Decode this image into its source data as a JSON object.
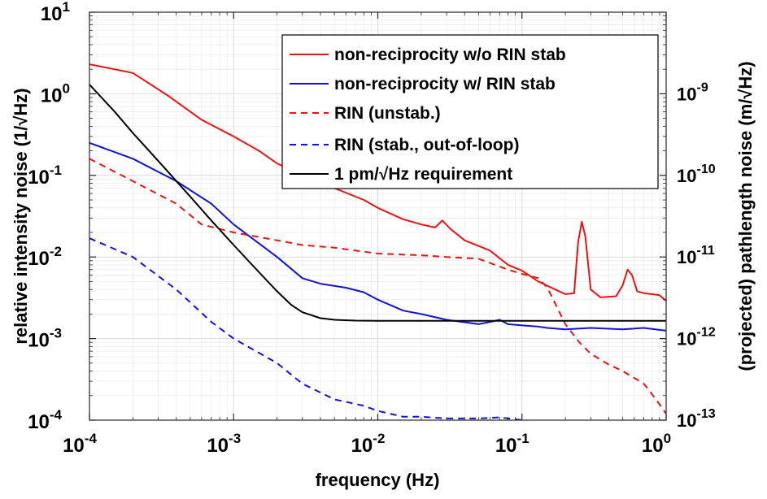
{
  "chart_data": {
    "type": "line",
    "x_scale": "log",
    "y_scale": "log",
    "xlim": [
      0.0001,
      1
    ],
    "ylim": [
      0.0001,
      10
    ],
    "y2lim": [
      1e-13,
      1e-08
    ],
    "grid": true,
    "legend_position": "top-right",
    "xlabel": "frequency (Hz)",
    "ylabel": "relative intensity noise (1/√Hz)",
    "y2label": "(projected) pathlength noise (m/√Hz)",
    "x_ticks": [
      {
        "value": 0.0001,
        "base": "10",
        "exp": "-4"
      },
      {
        "value": 0.001,
        "base": "10",
        "exp": "-3"
      },
      {
        "value": 0.01,
        "base": "10",
        "exp": "-2"
      },
      {
        "value": 0.1,
        "base": "10",
        "exp": "-1"
      },
      {
        "value": 1,
        "base": "10",
        "exp": "0"
      }
    ],
    "y_ticks": [
      {
        "value": 0.0001,
        "base": "10",
        "exp": "-4"
      },
      {
        "value": 0.001,
        "base": "10",
        "exp": "-3"
      },
      {
        "value": 0.01,
        "base": "10",
        "exp": "-2"
      },
      {
        "value": 0.1,
        "base": "10",
        "exp": "-1"
      },
      {
        "value": 1,
        "base": "10",
        "exp": "0"
      },
      {
        "value": 10,
        "base": "10",
        "exp": "1"
      }
    ],
    "y2_ticks": [
      {
        "value": 1e-13,
        "base": "10",
        "exp": "-13"
      },
      {
        "value": 1e-12,
        "base": "10",
        "exp": "-12"
      },
      {
        "value": 1e-11,
        "base": "10",
        "exp": "-11"
      },
      {
        "value": 1e-10,
        "base": "10",
        "exp": "-10"
      },
      {
        "value": 1e-09,
        "base": "10",
        "exp": "-9"
      }
    ],
    "series": [
      {
        "name": "non-reciprocity w/o RIN stab",
        "color": "#ee1111",
        "dash": "solid",
        "points": [
          [
            0.0001,
            2.3
          ],
          [
            0.0002,
            1.8
          ],
          [
            0.00035,
            0.95
          ],
          [
            0.0006,
            0.48
          ],
          [
            0.001,
            0.3
          ],
          [
            0.0015,
            0.2
          ],
          [
            0.002,
            0.14
          ],
          [
            0.003,
            0.1
          ],
          [
            0.005,
            0.07
          ],
          [
            0.008,
            0.05
          ],
          [
            0.01,
            0.04
          ],
          [
            0.015,
            0.029
          ],
          [
            0.02,
            0.025
          ],
          [
            0.025,
            0.023
          ],
          [
            0.028,
            0.028
          ],
          [
            0.032,
            0.022
          ],
          [
            0.04,
            0.016
          ],
          [
            0.06,
            0.012
          ],
          [
            0.08,
            0.008
          ],
          [
            0.1,
            0.0068
          ],
          [
            0.13,
            0.005
          ],
          [
            0.17,
            0.004
          ],
          [
            0.2,
            0.0035
          ],
          [
            0.23,
            0.0036
          ],
          [
            0.245,
            0.015
          ],
          [
            0.26,
            0.027
          ],
          [
            0.275,
            0.018
          ],
          [
            0.3,
            0.004
          ],
          [
            0.35,
            0.0032
          ],
          [
            0.45,
            0.0033
          ],
          [
            0.5,
            0.0045
          ],
          [
            0.54,
            0.007
          ],
          [
            0.58,
            0.006
          ],
          [
            0.63,
            0.0038
          ],
          [
            0.7,
            0.0036
          ],
          [
            0.8,
            0.0035
          ],
          [
            0.9,
            0.0034
          ],
          [
            1.0,
            0.0029
          ]
        ]
      },
      {
        "name": "non-reciprocity w/ RIN stab",
        "color": "#1111dd",
        "dash": "solid",
        "points": [
          [
            0.0001,
            0.25
          ],
          [
            0.0002,
            0.16
          ],
          [
            0.0004,
            0.085
          ],
          [
            0.0007,
            0.045
          ],
          [
            0.001,
            0.025
          ],
          [
            0.002,
            0.01
          ],
          [
            0.003,
            0.0055
          ],
          [
            0.004,
            0.0047
          ],
          [
            0.006,
            0.0042
          ],
          [
            0.008,
            0.0037
          ],
          [
            0.01,
            0.003
          ],
          [
            0.015,
            0.0022
          ],
          [
            0.02,
            0.002
          ],
          [
            0.03,
            0.0017
          ],
          [
            0.05,
            0.0015
          ],
          [
            0.06,
            0.0016
          ],
          [
            0.07,
            0.0017
          ],
          [
            0.08,
            0.0015
          ],
          [
            0.1,
            0.00145
          ],
          [
            0.13,
            0.0014
          ],
          [
            0.15,
            0.00135
          ],
          [
            0.2,
            0.0013
          ],
          [
            0.3,
            0.00135
          ],
          [
            0.5,
            0.0013
          ],
          [
            0.7,
            0.00135
          ],
          [
            1.0,
            0.00125
          ]
        ]
      },
      {
        "name": "RIN (unstab.)",
        "color": "#ee1111",
        "dash": "dashed",
        "points": [
          [
            0.0001,
            0.16
          ],
          [
            0.0002,
            0.085
          ],
          [
            0.0004,
            0.045
          ],
          [
            0.0006,
            0.025
          ],
          [
            0.001,
            0.02
          ],
          [
            0.002,
            0.016
          ],
          [
            0.003,
            0.014
          ],
          [
            0.005,
            0.013
          ],
          [
            0.007,
            0.012
          ],
          [
            0.01,
            0.011
          ],
          [
            0.02,
            0.0105
          ],
          [
            0.03,
            0.01
          ],
          [
            0.05,
            0.0095
          ],
          [
            0.08,
            0.007
          ],
          [
            0.1,
            0.0062
          ],
          [
            0.13,
            0.0055
          ],
          [
            0.15,
            0.0042
          ],
          [
            0.2,
            0.0015
          ],
          [
            0.25,
            0.0009
          ],
          [
            0.3,
            0.00065
          ],
          [
            0.4,
            0.00048
          ],
          [
            0.5,
            0.0004
          ],
          [
            0.7,
            0.00028
          ],
          [
            0.85,
            0.00018
          ],
          [
            1.0,
            0.00012
          ]
        ]
      },
      {
        "name": "RIN (stab., out-of-loop)",
        "color": "#1111dd",
        "dash": "dashed",
        "points": [
          [
            0.0001,
            0.017
          ],
          [
            0.0002,
            0.01
          ],
          [
            0.0004,
            0.004
          ],
          [
            0.0007,
            0.0016
          ],
          [
            0.001,
            0.001
          ],
          [
            0.002,
            0.0005
          ],
          [
            0.003,
            0.00028
          ],
          [
            0.005,
            0.00018
          ],
          [
            0.008,
            0.00015
          ],
          [
            0.01,
            0.00013
          ],
          [
            0.015,
            0.00011
          ],
          [
            0.02,
            0.00011
          ],
          [
            0.03,
            0.000105
          ],
          [
            0.05,
            0.000105
          ],
          [
            0.07,
            0.000108
          ],
          [
            0.1,
            0.0001
          ],
          [
            0.15,
            9.5e-05
          ],
          [
            0.2,
            9.2e-05
          ],
          [
            0.3,
            9e-05
          ],
          [
            0.5,
            8.8e-05
          ],
          [
            0.7,
            8.5e-05
          ]
        ]
      },
      {
        "name": "1 pm/√Hz requirement",
        "color": "#000000",
        "dash": "solid",
        "points": [
          [
            0.0001,
            1.3
          ],
          [
            0.00015,
            0.6
          ],
          [
            0.0002,
            0.33
          ],
          [
            0.0003,
            0.15
          ],
          [
            0.0005,
            0.055
          ],
          [
            0.0007,
            0.028
          ],
          [
            0.001,
            0.014
          ],
          [
            0.0015,
            0.0065
          ],
          [
            0.002,
            0.0038
          ],
          [
            0.0025,
            0.0026
          ],
          [
            0.003,
            0.0021
          ],
          [
            0.004,
            0.00178
          ],
          [
            0.005,
            0.0017
          ],
          [
            0.007,
            0.00166
          ],
          [
            0.01,
            0.00165
          ],
          [
            0.1,
            0.00165
          ],
          [
            1.0,
            0.00165
          ]
        ]
      }
    ]
  }
}
